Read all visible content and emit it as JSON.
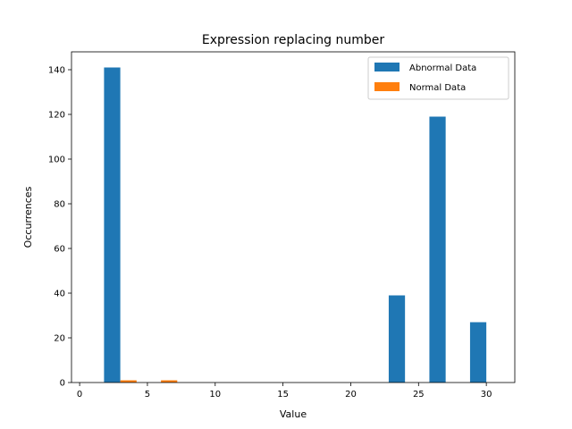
{
  "chart_data": {
    "type": "bar",
    "title": "Expression replacing number",
    "xlabel": "Value",
    "ylabel": "Occurrences",
    "xlim": [
      -0.6,
      32.1
    ],
    "ylim": [
      0,
      148
    ],
    "xticks": [
      0,
      5,
      10,
      15,
      20,
      25,
      30
    ],
    "yticks": [
      0,
      20,
      40,
      60,
      80,
      100,
      120,
      140
    ],
    "bin_width": 1.2,
    "legend_position": "top-right",
    "grid": false,
    "series": [
      {
        "name": "Abnormal Data",
        "color": "#1f77b4",
        "bars": [
          {
            "x": 1.8,
            "value": 141
          },
          {
            "x": 22.8,
            "value": 39
          },
          {
            "x": 25.8,
            "value": 119
          },
          {
            "x": 28.8,
            "value": 27
          }
        ]
      },
      {
        "name": "Normal Data",
        "color": "#ff7f0e",
        "bars": [
          {
            "x": 3.0,
            "value": 1
          },
          {
            "x": 6.0,
            "value": 1
          }
        ]
      }
    ]
  }
}
